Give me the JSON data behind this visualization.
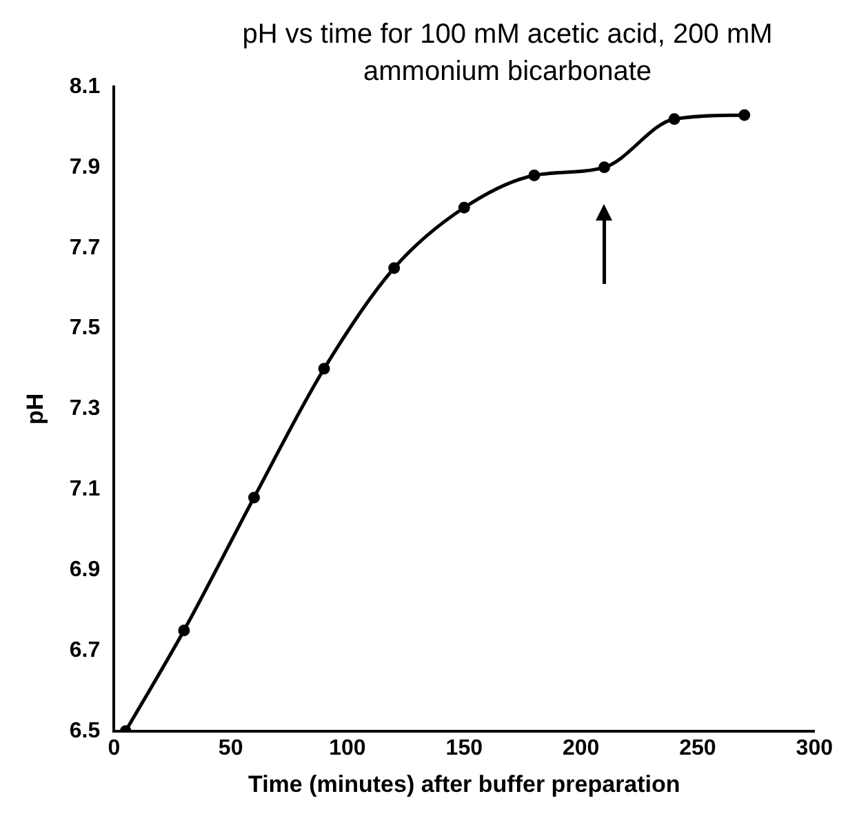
{
  "chart_data": {
    "type": "line",
    "title": "pH vs time for 100 mM acetic acid, 200 mM ammonium bicarbonate",
    "xlabel": "Time (minutes) after buffer preparation",
    "ylabel": "pH",
    "x": [
      5,
      30,
      60,
      90,
      120,
      150,
      180,
      210,
      240,
      270
    ],
    "series": [
      {
        "color": "#000000",
        "values": [
          6.5,
          6.75,
          7.08,
          7.4,
          7.65,
          7.8,
          7.88,
          7.9,
          8.02,
          8.03
        ]
      }
    ],
    "xlim": [
      0,
      300
    ],
    "xticks": [
      0,
      50,
      100,
      150,
      200,
      250,
      300
    ],
    "ylim": [
      6.5,
      8.1
    ],
    "yticks": [
      6.5,
      6.7,
      6.9,
      7.1,
      7.3,
      7.5,
      7.7,
      7.9,
      8.1
    ],
    "grid": false,
    "legend": false,
    "marker": "circle",
    "line_style": "solid"
  }
}
